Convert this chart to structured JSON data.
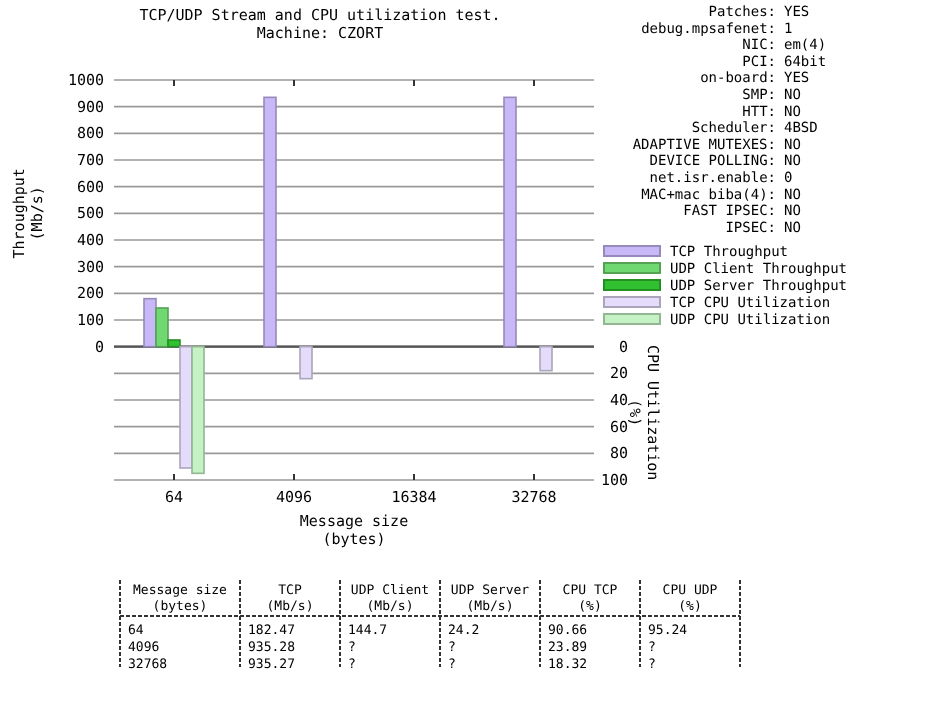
{
  "chart_data": {
    "type": "bar",
    "title": "TCP/UDP Stream and CPU utilization test.",
    "subtitle": "Machine: CZORT",
    "xlabel": "Message size\n(bytes)",
    "ylabel": "Throughput\n(Mb/s)",
    "y2label": "CPU Utilization\n(%)",
    "categories": [
      "64",
      "4096",
      "16384",
      "32768"
    ],
    "ylim": [
      -500,
      1000
    ],
    "yticks": [
      0,
      100,
      200,
      300,
      400,
      500,
      600,
      700,
      800,
      900,
      1000
    ],
    "y2lim": [
      100,
      -200
    ],
    "y2ticks": [
      0,
      20,
      40,
      60,
      80,
      100
    ],
    "grid": true,
    "legend": "right",
    "series": [
      {
        "name": "TCP Throughput",
        "color": "#c8b8f8",
        "values": [
          180,
          935,
          null,
          935
        ]
      },
      {
        "name": "UDP Client Throughput",
        "color": "#70d870",
        "values": [
          145,
          null,
          null,
          null
        ]
      },
      {
        "name": "UDP Server Throughput",
        "color": "#30c030",
        "values": [
          25,
          null,
          null,
          null
        ]
      },
      {
        "name": "TCP CPU Utilization",
        "color": "#e4dcfa",
        "axis": "y2",
        "values": [
          91,
          24,
          null,
          18
        ]
      },
      {
        "name": "UDP CPU Utilization",
        "color": "#c4f2c4",
        "axis": "y2",
        "values": [
          95,
          null,
          null,
          null
        ]
      }
    ],
    "annotations": [
      "Patches: YES\ndebug.mpsafenet: 1\nNIC: em(4)\nPCI: 64bit\non-board: YES\nSMP: NO\nHTT: NO\nScheduler: 4BSD\nADAPTIVE MUTEXES: NO\nDEVICE POLLING: NO\nnet.isr.enable: 0\nMAC+mac biba(4): NO\nFAST IPSEC: NO\nIPSEC: NO",
      "Message size\n(bytes)",
      "TCP\n(Mb/s)",
      "UDP Client\n(Mb/s)",
      "UDP Server\n(Mb/s)",
      "CPU TCP\n(%)",
      "CPU UDP\n(%)",
      "64",
      "182.47",
      "144.7",
      "24.2",
      "90.66",
      "95.24",
      "4096",
      "935.28",
      "?",
      "?",
      "23.89",
      "?",
      "32768",
      "935.27",
      "?",
      "?",
      "18.32",
      "?"
    ]
  }
}
